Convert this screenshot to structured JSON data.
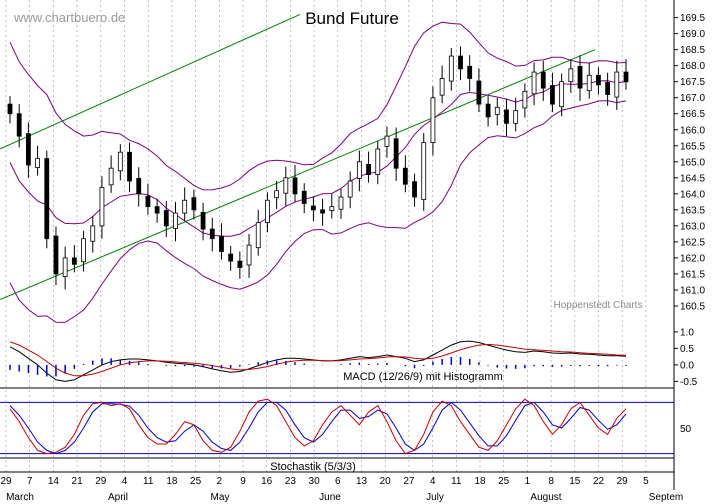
{
  "watermark": "www.chartbuero.de",
  "credit": "Hoppenstedt Charts",
  "colors": {
    "candle": "#000000",
    "bollinger": "#800080",
    "trend": "#008000",
    "macd_signal": "#cc0000",
    "histogram": "#0000cc",
    "stoch_k": "#cc0000",
    "stoch_d": "#0000cc",
    "stoch_ref": "#0000cc",
    "grid": "#999999"
  },
  "chart_data": [
    {
      "type": "candlestick",
      "title": "Bund Future",
      "y_ticks": [
        "160.5",
        "161.0",
        "161.5",
        "162.0",
        "162.5",
        "163.0",
        "163.5",
        "164.0",
        "164.5",
        "165.0",
        "165.5",
        "166.0",
        "166.5",
        "167.0",
        "167.5",
        "168.0",
        "168.5",
        "169.0",
        "169.5"
      ],
      "ylim": [
        160.0,
        169.8
      ],
      "overlays": [
        "Bollinger Bands",
        "Trend channel"
      ],
      "series": [
        {
          "name": "OHLC",
          "values": [
            166.5,
            165.8,
            164.9,
            165.1,
            162.6,
            161.5,
            162.0,
            161.8,
            162.6,
            163.0,
            164.2,
            164.8,
            165.3,
            164.4,
            164.0,
            163.6,
            163.4,
            163.0,
            163.4,
            163.8,
            163.5,
            162.9,
            162.6,
            162.2,
            161.9,
            161.7,
            162.4,
            163.1,
            163.8,
            164.1,
            164.5,
            164.0,
            163.7,
            163.5,
            163.4,
            163.6,
            163.9,
            164.4,
            165.0,
            164.6,
            165.4,
            165.8,
            164.8,
            164.3,
            163.9,
            165.6,
            167.0,
            167.6,
            168.3,
            167.9,
            167.6,
            166.8,
            166.4,
            166.7,
            166.2,
            166.6,
            167.2,
            167.8,
            167.3,
            166.8,
            167.5,
            167.9,
            167.3,
            167.7,
            167.4,
            167.1,
            167.8,
            167.5
          ]
        }
      ]
    },
    {
      "type": "line",
      "label": "MACD (12/26/9) mit Histogramm",
      "y_ticks": [
        "1.0",
        "0.5",
        "0.0",
        "-0.5"
      ],
      "ylim": [
        -0.7,
        1.3
      ],
      "series": [
        {
          "values": [
            0.55,
            0.4,
            0.2,
            0.0,
            -0.25,
            -0.45,
            -0.5,
            -0.45,
            -0.3,
            -0.15,
            0.0,
            0.1,
            0.15,
            0.18,
            0.18,
            0.15,
            0.12,
            0.08,
            0.05,
            0.03,
            0.0,
            -0.05,
            -0.12,
            -0.18,
            -0.22,
            -0.2,
            -0.12,
            -0.02,
            0.08,
            0.15,
            0.2,
            0.2,
            0.18,
            0.15,
            0.12,
            0.12,
            0.15,
            0.2,
            0.25,
            0.22,
            0.25,
            0.3,
            0.25,
            0.2,
            0.1,
            0.15,
            0.3,
            0.45,
            0.6,
            0.7,
            0.72,
            0.68,
            0.6,
            0.52,
            0.45,
            0.4,
            0.38,
            0.42,
            0.4,
            0.36,
            0.35,
            0.36,
            0.33,
            0.32,
            0.3,
            0.28,
            0.28,
            0.26
          ]
        },
        {
          "values": [
            0.7,
            0.6,
            0.45,
            0.3,
            0.1,
            -0.1,
            -0.25,
            -0.33,
            -0.33,
            -0.28,
            -0.2,
            -0.1,
            0.0,
            0.06,
            0.1,
            0.12,
            0.12,
            0.11,
            0.09,
            0.07,
            0.05,
            0.02,
            -0.02,
            -0.07,
            -0.12,
            -0.15,
            -0.14,
            -0.1,
            -0.05,
            0.02,
            0.08,
            0.12,
            0.14,
            0.14,
            0.13,
            0.12,
            0.13,
            0.15,
            0.18,
            0.19,
            0.21,
            0.24,
            0.25,
            0.24,
            0.2,
            0.18,
            0.2,
            0.27,
            0.36,
            0.46,
            0.54,
            0.6,
            0.62,
            0.6,
            0.56,
            0.52,
            0.48,
            0.46,
            0.44,
            0.42,
            0.4,
            0.39,
            0.37,
            0.35,
            0.34,
            0.32,
            0.3,
            0.29
          ]
        }
      ],
      "histogram": [
        -0.15,
        -0.2,
        -0.25,
        -0.3,
        -0.35,
        -0.35,
        -0.25,
        -0.12,
        0.03,
        0.13,
        0.2,
        0.2,
        0.15,
        0.12,
        0.08,
        0.03,
        0.0,
        -0.03,
        -0.04,
        -0.04,
        -0.05,
        -0.07,
        -0.1,
        -0.11,
        -0.1,
        -0.05,
        0.02,
        0.08,
        0.13,
        0.13,
        0.12,
        0.08,
        0.04,
        0.01,
        -0.01,
        0.0,
        0.02,
        0.05,
        0.07,
        0.03,
        0.04,
        0.06,
        0.0,
        -0.04,
        -0.1,
        -0.03,
        0.1,
        0.18,
        0.24,
        0.24,
        0.18,
        0.08,
        -0.02,
        -0.08,
        -0.11,
        -0.12,
        -0.1,
        -0.04,
        -0.04,
        -0.06,
        -0.05,
        -0.03,
        -0.04,
        -0.03,
        -0.04,
        -0.04,
        -0.02,
        -0.03
      ]
    },
    {
      "type": "line",
      "label": "Stochastik (5/3/3)",
      "y_ticks": [
        "50"
      ],
      "ylim": [
        0,
        100
      ],
      "reference_lines": [
        90,
        10
      ],
      "series": [
        {
          "values": [
            80,
            60,
            35,
            15,
            10,
            12,
            20,
            40,
            70,
            88,
            90,
            85,
            88,
            80,
            55,
            35,
            25,
            25,
            40,
            60,
            55,
            30,
            15,
            12,
            20,
            45,
            75,
            92,
            95,
            85,
            60,
            35,
            22,
            30,
            55,
            75,
            85,
            70,
            55,
            75,
            85,
            60,
            30,
            10,
            15,
            40,
            75,
            92,
            85,
            60,
            40,
            20,
            15,
            30,
            55,
            80,
            95,
            85,
            60,
            40,
            55,
            80,
            90,
            70,
            50,
            40,
            65,
            80
          ]
        },
        {
          "values": [
            85,
            70,
            50,
            28,
            15,
            10,
            15,
            28,
            50,
            75,
            88,
            88,
            87,
            84,
            70,
            50,
            35,
            28,
            30,
            45,
            55,
            45,
            28,
            18,
            15,
            28,
            50,
            75,
            90,
            90,
            78,
            55,
            35,
            28,
            40,
            60,
            78,
            78,
            65,
            68,
            78,
            72,
            50,
            25,
            15,
            25,
            50,
            78,
            90,
            78,
            58,
            38,
            22,
            22,
            38,
            62,
            85,
            90,
            75,
            55,
            50,
            65,
            82,
            78,
            62,
            48,
            55,
            72
          ]
        }
      ]
    }
  ],
  "x_ticks": [
    "29",
    "7",
    "14",
    "21",
    "29",
    "4",
    "11",
    "18",
    "25",
    "2",
    "9",
    "16",
    "23",
    "30",
    "6",
    "13",
    "20",
    "27",
    "4",
    "11",
    "18",
    "25",
    "1",
    "8",
    "15",
    "22",
    "29",
    "5"
  ],
  "month_labels": [
    "March",
    "April",
    "May",
    "June",
    "July",
    "August",
    "Septem"
  ]
}
